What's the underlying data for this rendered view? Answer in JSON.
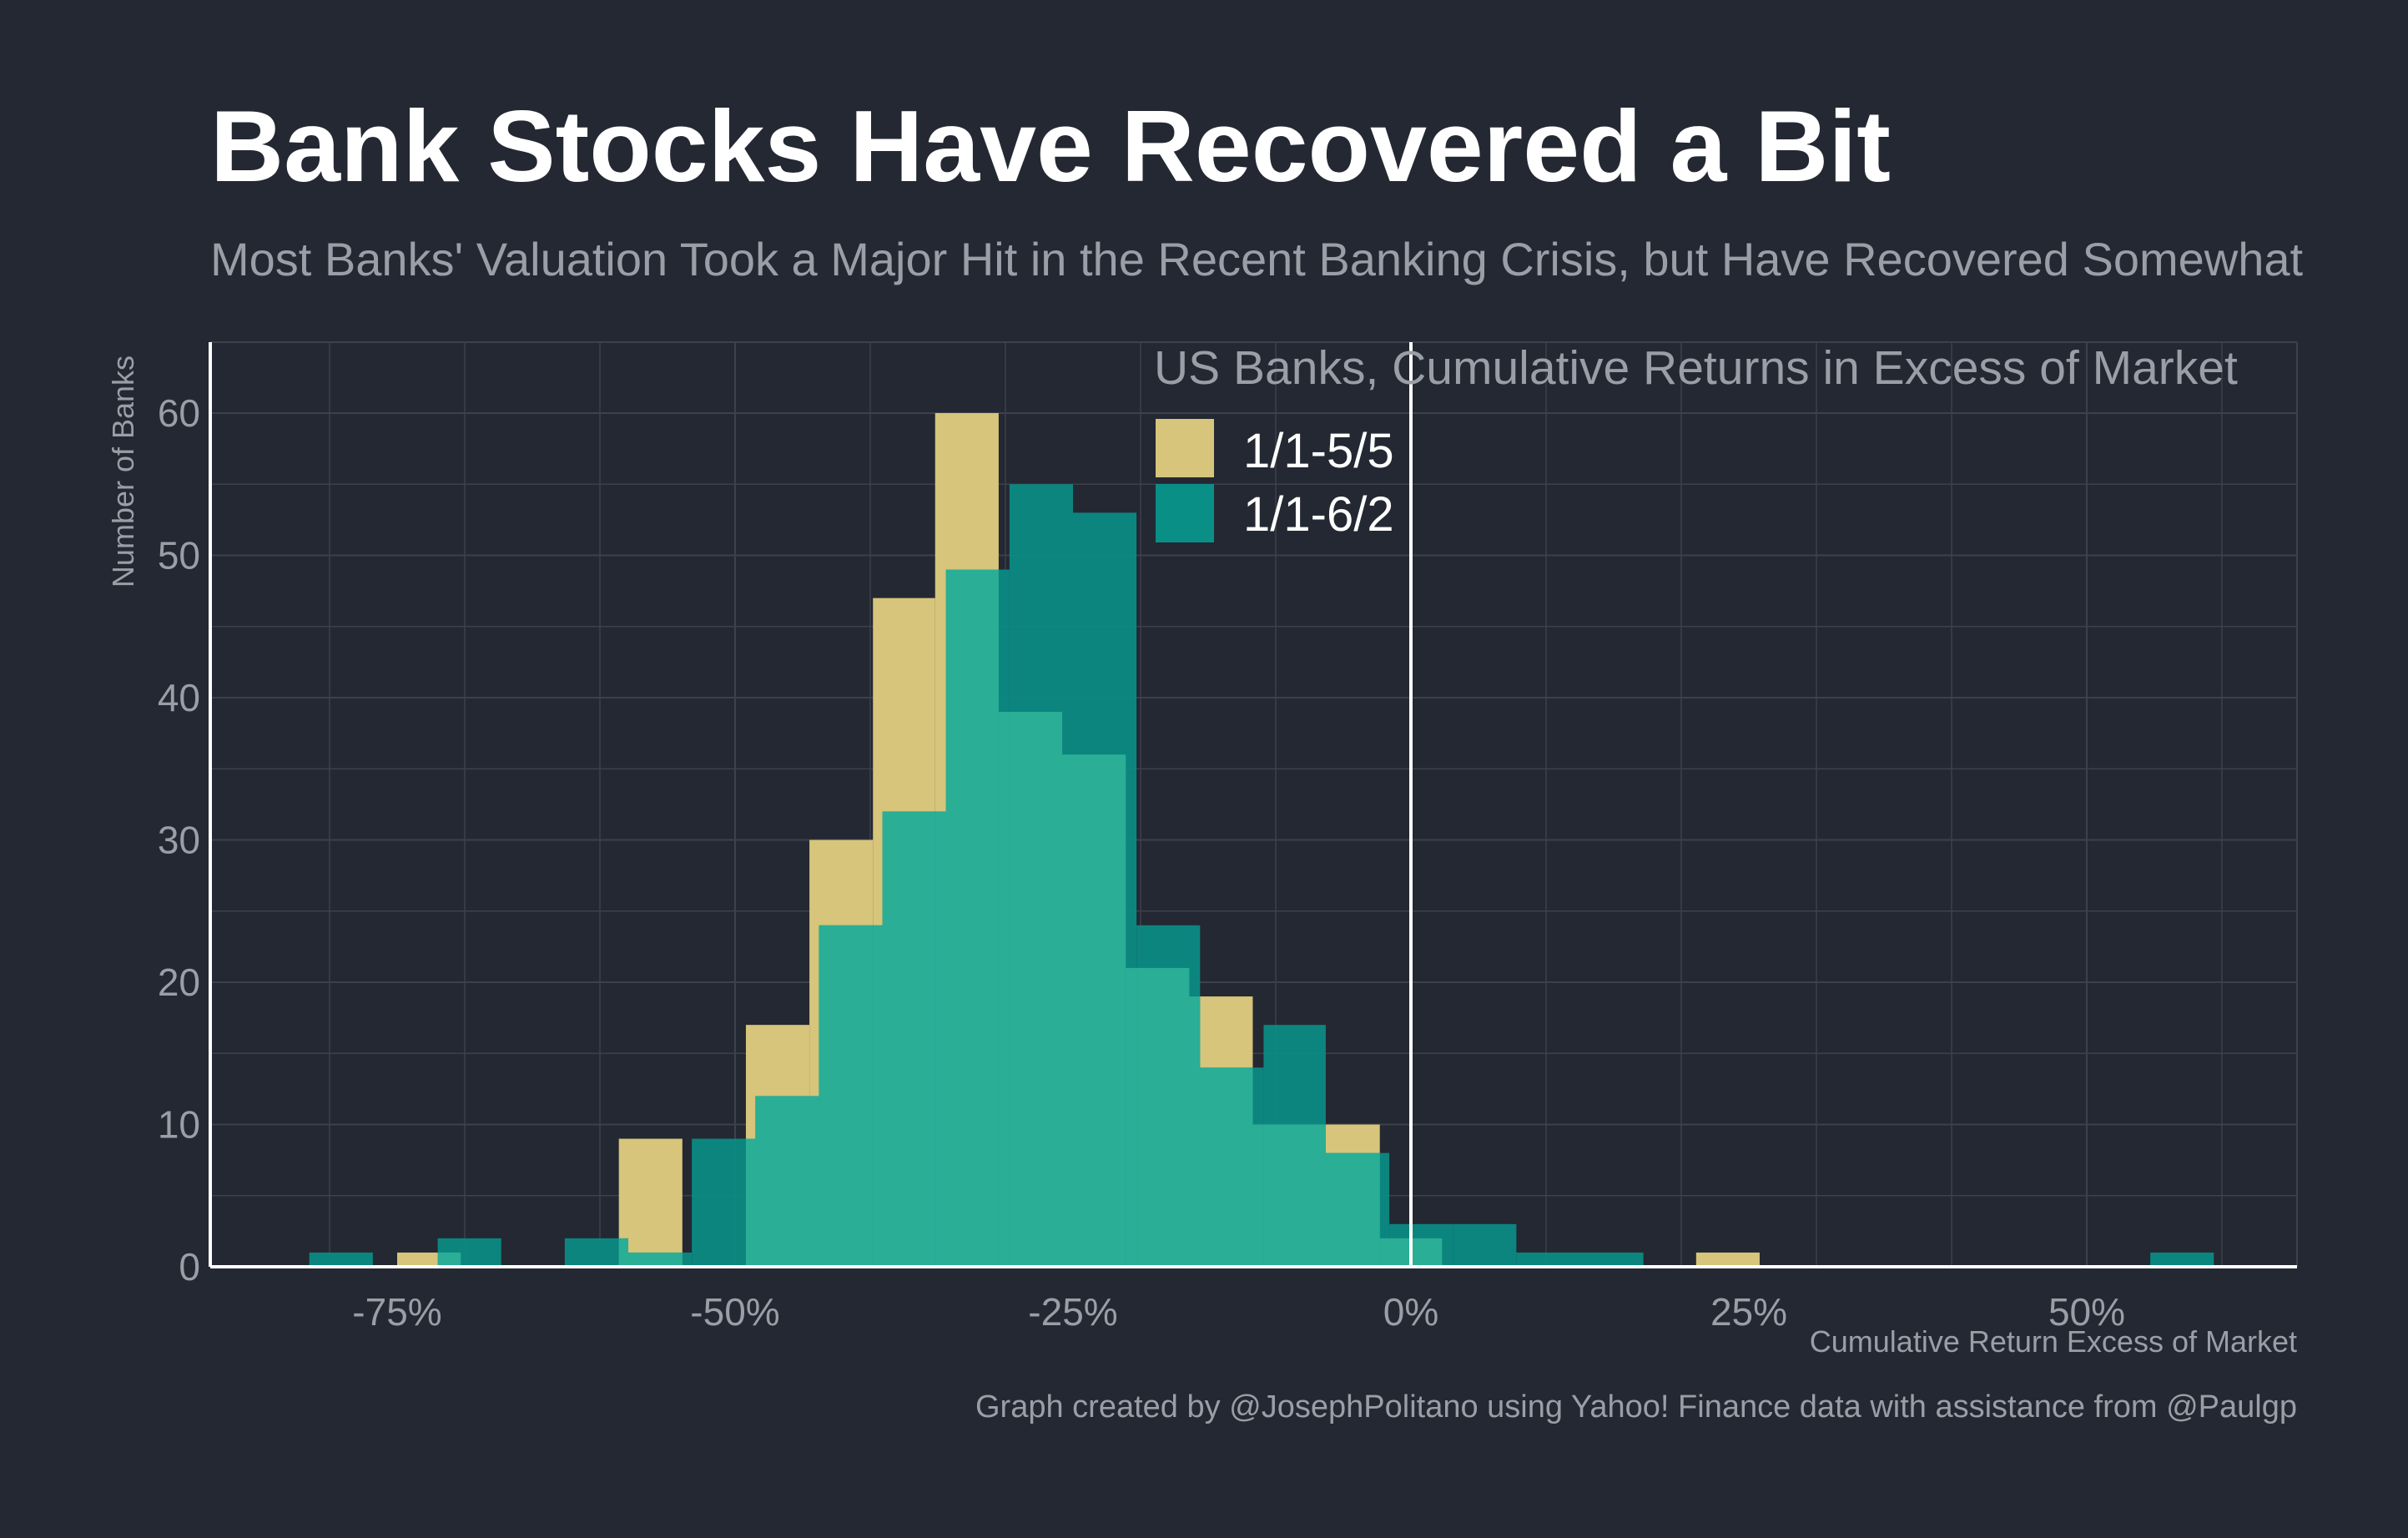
{
  "title": "Bank Stocks Have Recovered a Bit",
  "subtitle": "Most Banks' Valuation Took a Major Hit in the Recent Banking Crisis, but Have Recovered Somewhat",
  "caption": "Graph created by @JosephPolitano using Yahoo! Finance data with assistance from @Paulgp",
  "colors": {
    "background": "#242832",
    "series_a": "#d6c57a",
    "series_b": "#0a8f87",
    "overlap": "#2aae96",
    "text": "#9a9ea6"
  },
  "chart_data": {
    "type": "bar",
    "subtype": "overlapping-histogram",
    "xlabel": "Cumulative Return Excess of Market",
    "ylabel": "Number of Banks",
    "xlim": [
      -88,
      66
    ],
    "ylim": [
      0,
      65
    ],
    "x_ticks": [
      -75,
      -50,
      -25,
      0,
      25,
      50
    ],
    "x_tick_labels": [
      "-75%",
      "-50%",
      "-25%",
      "0%",
      "25%",
      "50%"
    ],
    "y_ticks": [
      0,
      10,
      20,
      30,
      40,
      50,
      60
    ],
    "y_tick_labels": [
      "0",
      "10",
      "20",
      "30",
      "40",
      "50",
      "60"
    ],
    "grid": true,
    "vline_at": 0,
    "legend_title": "US Banks, Cumulative Returns in Excess of Market",
    "legend_position": "top-center",
    "series": [
      {
        "name": "1/1-5/5",
        "color": "#d6c57a",
        "bins": [
          {
            "x0": -75,
            "x1": -70.3,
            "count": 1
          },
          {
            "x0": -58.6,
            "x1": -53.9,
            "count": 9
          },
          {
            "x0": -49.2,
            "x1": -44.5,
            "count": 17
          },
          {
            "x0": -44.5,
            "x1": -39.8,
            "count": 30
          },
          {
            "x0": -39.8,
            "x1": -35.2,
            "count": 47
          },
          {
            "x0": -35.2,
            "x1": -30.5,
            "count": 60
          },
          {
            "x0": -30.5,
            "x1": -25.8,
            "count": 39
          },
          {
            "x0": -25.8,
            "x1": -21.1,
            "count": 36
          },
          {
            "x0": -21.1,
            "x1": -16.4,
            "count": 21
          },
          {
            "x0": -16.4,
            "x1": -11.7,
            "count": 19
          },
          {
            "x0": -11.7,
            "x1": -7.0,
            "count": 10
          },
          {
            "x0": -7.0,
            "x1": -2.3,
            "count": 10
          },
          {
            "x0": -2.3,
            "x1": 2.3,
            "count": 2
          },
          {
            "x0": 21.1,
            "x1": 25.8,
            "count": 1
          }
        ]
      },
      {
        "name": "1/1-6/2",
        "color": "#0a8f87",
        "bins": [
          {
            "x0": -81.5,
            "x1": -76.8,
            "count": 1
          },
          {
            "x0": -72.0,
            "x1": -67.3,
            "count": 2
          },
          {
            "x0": -62.6,
            "x1": -57.9,
            "count": 2
          },
          {
            "x0": -57.9,
            "x1": -53.2,
            "count": 1
          },
          {
            "x0": -53.2,
            "x1": -48.5,
            "count": 9
          },
          {
            "x0": -48.5,
            "x1": -43.8,
            "count": 12
          },
          {
            "x0": -43.8,
            "x1": -39.1,
            "count": 24
          },
          {
            "x0": -39.1,
            "x1": -34.4,
            "count": 32
          },
          {
            "x0": -34.4,
            "x1": -29.7,
            "count": 49
          },
          {
            "x0": -29.7,
            "x1": -25.0,
            "count": 55
          },
          {
            "x0": -25.0,
            "x1": -20.3,
            "count": 53
          },
          {
            "x0": -20.3,
            "x1": -15.6,
            "count": 24
          },
          {
            "x0": -15.6,
            "x1": -10.9,
            "count": 14
          },
          {
            "x0": -10.9,
            "x1": -6.3,
            "count": 17
          },
          {
            "x0": -6.3,
            "x1": -1.6,
            "count": 8
          },
          {
            "x0": -1.6,
            "x1": 3.1,
            "count": 3
          },
          {
            "x0": 3.1,
            "x1": 7.8,
            "count": 3
          },
          {
            "x0": 7.8,
            "x1": 12.5,
            "count": 1
          },
          {
            "x0": 12.5,
            "x1": 17.2,
            "count": 1
          },
          {
            "x0": 54.7,
            "x1": 59.4,
            "count": 1
          }
        ]
      }
    ]
  }
}
